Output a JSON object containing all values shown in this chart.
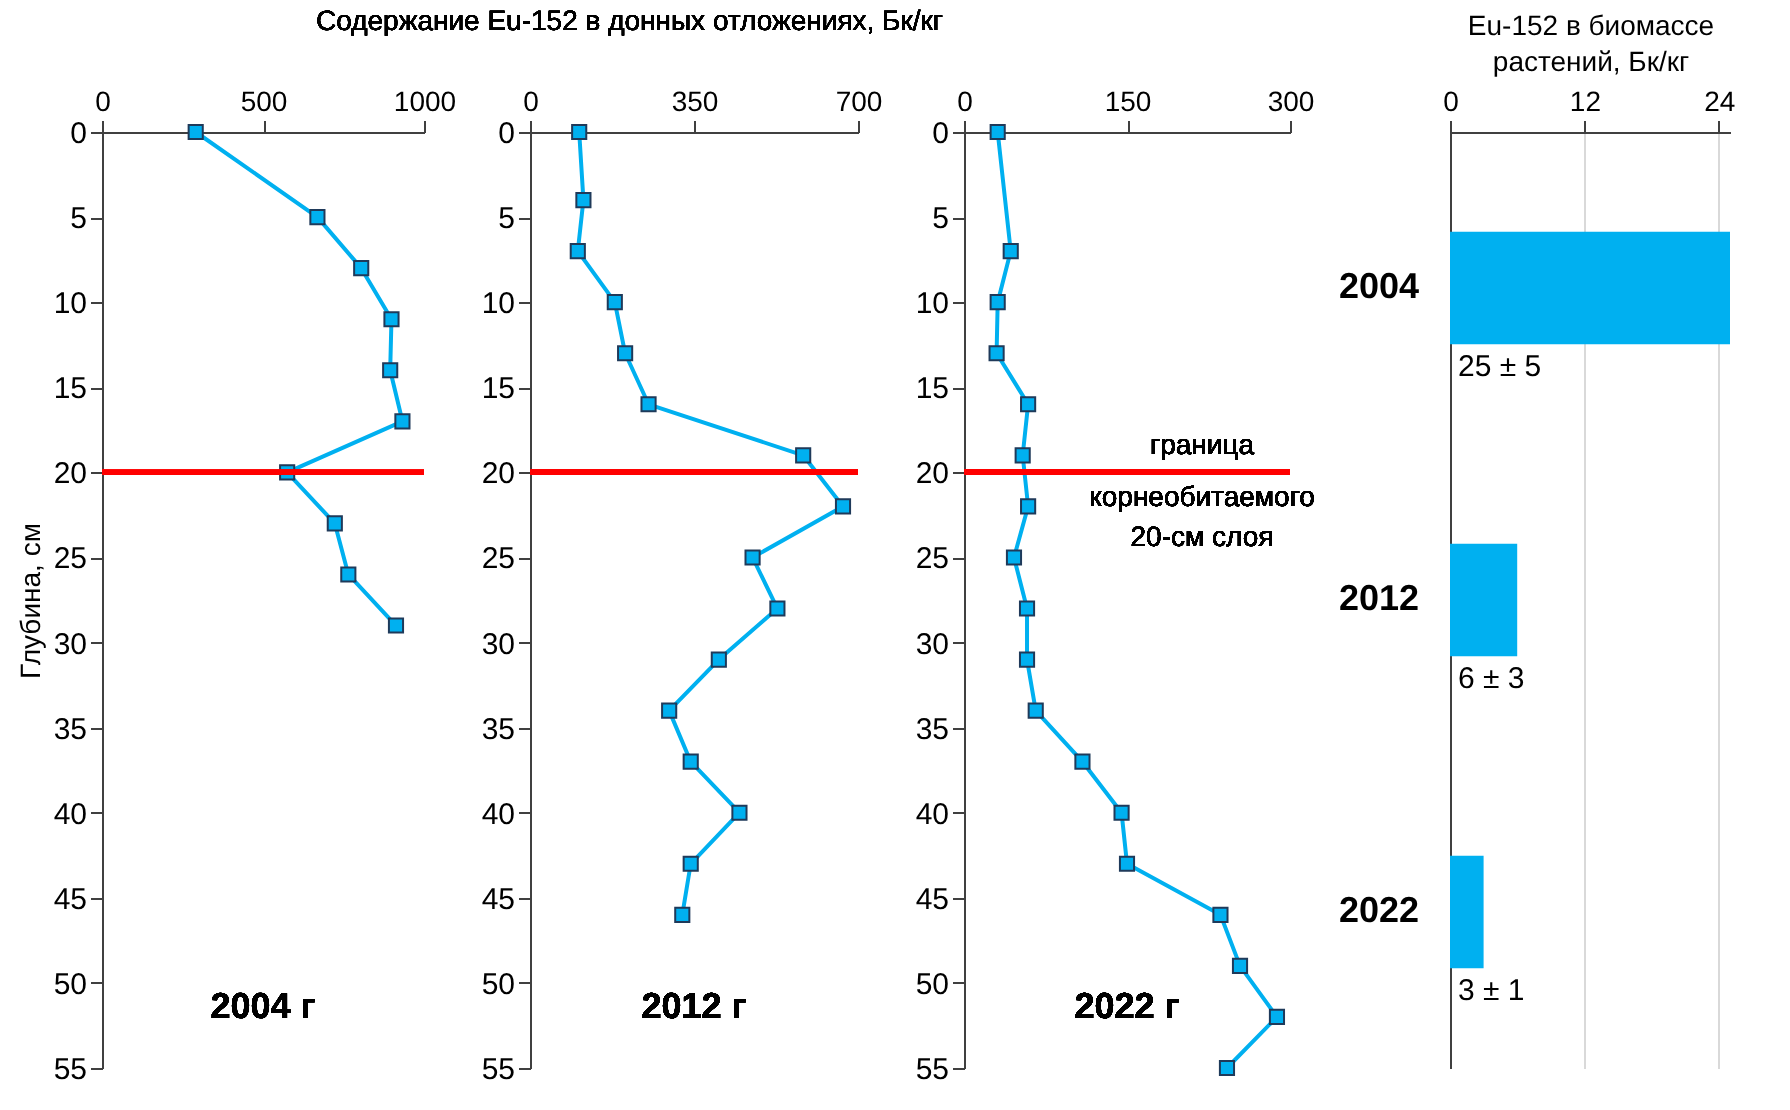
{
  "chart_data": [
    {
      "type": "line",
      "title": "Содержание Eu-152 в донных отложениях, Бк/кг",
      "ylabel": "Глубина, см",
      "annotations": [
        "2004 г"
      ],
      "color": "#00b0f0",
      "marker": "square",
      "x": [
        291,
        669,
        805,
        899,
        895,
        933,
        575,
        723,
        765,
        913
      ],
      "values": [
        0,
        5,
        8,
        11,
        14,
        17,
        20,
        23,
        26,
        29
      ],
      "xlim": [
        0,
        1000
      ],
      "xticks": [
        0,
        500,
        1000
      ],
      "ylim": [
        55,
        0
      ],
      "yticks": [
        0,
        5,
        10,
        15,
        20,
        25,
        30,
        35,
        40,
        45,
        50,
        55
      ],
      "ref_lines": [
        {
          "axis": "y",
          "value": 20,
          "color": "#ff0000"
        }
      ]
    },
    {
      "type": "line",
      "annotations": [
        "2012 г"
      ],
      "color": "#00b0f0",
      "marker": "square",
      "x": [
        105,
        114,
        102,
        181,
        203,
        253,
        583,
        668,
        475,
        528,
        403,
        297,
        343,
        447,
        343,
        325
      ],
      "values": [
        0,
        4,
        7,
        10,
        13,
        16,
        19,
        22,
        25,
        28,
        31,
        34,
        37,
        40,
        43,
        46
      ],
      "xlim": [
        0,
        700
      ],
      "xticks": [
        0,
        350,
        700
      ],
      "ylim": [
        55,
        0
      ],
      "yticks": [
        0,
        5,
        10,
        15,
        20,
        25,
        30,
        35,
        40,
        45,
        50,
        55
      ],
      "ref_lines": [
        {
          "axis": "y",
          "value": 20,
          "color": "#ff0000"
        }
      ]
    },
    {
      "type": "line",
      "annotations": [
        "2022 г"
      ],
      "color": "#00b0f0",
      "marker": "square",
      "x": [
        31,
        43,
        31,
        30,
        59,
        54,
        59,
        46,
        58,
        58,
        66,
        109,
        145,
        150,
        236,
        254,
        288,
        242
      ],
      "values": [
        0,
        7,
        10,
        13,
        16,
        19,
        22,
        25,
        28,
        31,
        34,
        37,
        40,
        43,
        46,
        49,
        52,
        55
      ],
      "xlim": [
        0,
        300
      ],
      "xticks": [
        0,
        150,
        300
      ],
      "ylim": [
        55,
        0
      ],
      "yticks": [
        0,
        5,
        10,
        15,
        20,
        25,
        30,
        35,
        40,
        45,
        50,
        55
      ],
      "ref_lines": [
        {
          "axis": "y",
          "value": 20,
          "color": "#ff0000",
          "label": "граница\nкорнеобитаемого\n20-см слоя"
        }
      ]
    },
    {
      "type": "bar",
      "orientation": "horizontal",
      "xlabel": "Eu-152 в биомассе растений, Бк/кг",
      "categories": [
        "2004",
        "2012",
        "2022"
      ],
      "values": [
        25,
        6,
        3
      ],
      "color": "#00b0f0",
      "value_labels": [
        "25 ± 5",
        "6 ± 3",
        "3 ± 1"
      ],
      "xlim": [
        0,
        25
      ],
      "xticks": [
        0,
        12,
        24
      ],
      "grid": "x"
    }
  ]
}
